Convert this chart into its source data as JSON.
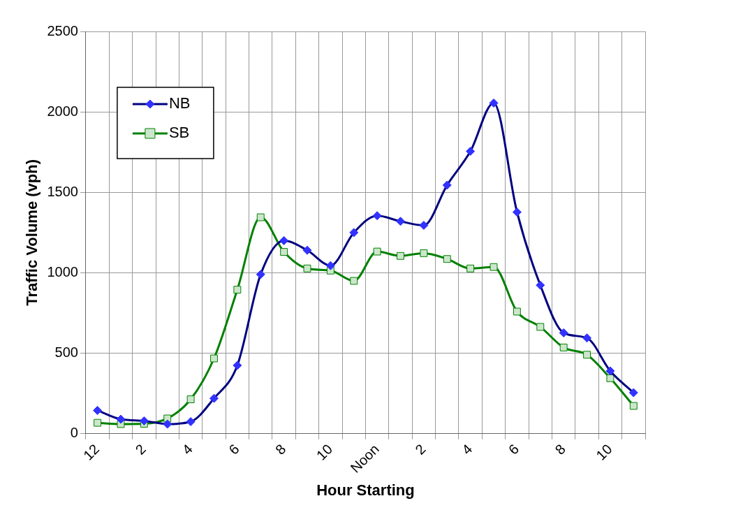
{
  "chart_data": {
    "type": "line",
    "xlabel": "Hour Starting",
    "ylabel": "Traffic Volume (vph)",
    "categories": [
      "12",
      null,
      "2",
      null,
      "4",
      null,
      "6",
      null,
      "8",
      null,
      "10",
      null,
      "Noon",
      null,
      "2",
      null,
      "4",
      null,
      "6",
      null,
      "8",
      null,
      "10",
      null
    ],
    "series": [
      {
        "name": "NB",
        "color": "#000080",
        "marker": "diamond",
        "values": [
          145,
          90,
          80,
          60,
          75,
          220,
          425,
          990,
          1200,
          1140,
          1045,
          1250,
          1355,
          1320,
          1295,
          1545,
          1755,
          2055,
          1377,
          923,
          627,
          595,
          390,
          255
        ]
      },
      {
        "name": "SB",
        "color": "#008000",
        "marker": "square",
        "values": [
          68,
          60,
          62,
          95,
          214,
          468,
          895,
          1345,
          1130,
          1027,
          1014,
          950,
          1132,
          1105,
          1122,
          1086,
          1027,
          1036,
          759,
          664,
          536,
          491,
          345,
          173
        ]
      }
    ],
    "ylim": [
      0,
      2500
    ],
    "yticks": [
      0,
      500,
      1000,
      1500,
      2000,
      2500
    ],
    "grid": true,
    "legend": "top left"
  }
}
